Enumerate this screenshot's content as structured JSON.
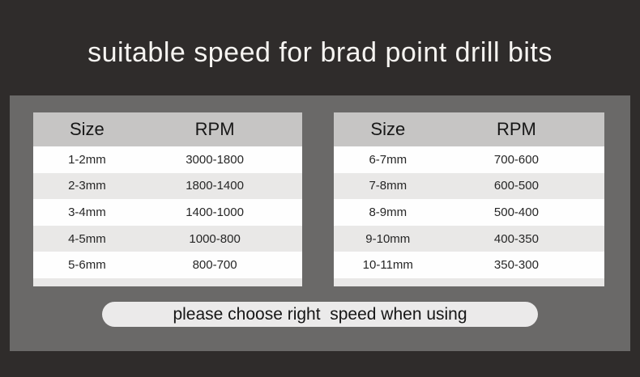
{
  "title": "suitable speed for brad point drill bits",
  "footer": {
    "note": "please choose right  speed when using"
  },
  "colors": {
    "page_background": "#2f2c2b",
    "panel_background": "#6a6968",
    "table_header_background": "#c6c5c4",
    "row_white": "#fefefe",
    "row_alt": "#e9e8e7",
    "pill_background": "#ebeaea",
    "title_text": "#f6f4f1",
    "table_text": "#262626"
  },
  "chart_data": [
    {
      "type": "table",
      "title": "suitable speed for brad point drill bits",
      "columns": [
        "Size",
        "RPM"
      ],
      "rows": [
        [
          "1-2mm",
          "3000-1800"
        ],
        [
          "2-3mm",
          "1800-1400"
        ],
        [
          "3-4mm",
          "1400-1000"
        ],
        [
          "4-5mm",
          "1000-800"
        ],
        [
          "5-6mm",
          "800-700"
        ]
      ]
    },
    {
      "type": "table",
      "title": "suitable speed for brad point drill bits",
      "columns": [
        "Size",
        "RPM"
      ],
      "rows": [
        [
          "6-7mm",
          "700-600"
        ],
        [
          "7-8mm",
          "600-500"
        ],
        [
          "8-9mm",
          "500-400"
        ],
        [
          "9-10mm",
          "400-350"
        ],
        [
          "10-11mm",
          "350-300"
        ]
      ]
    }
  ]
}
